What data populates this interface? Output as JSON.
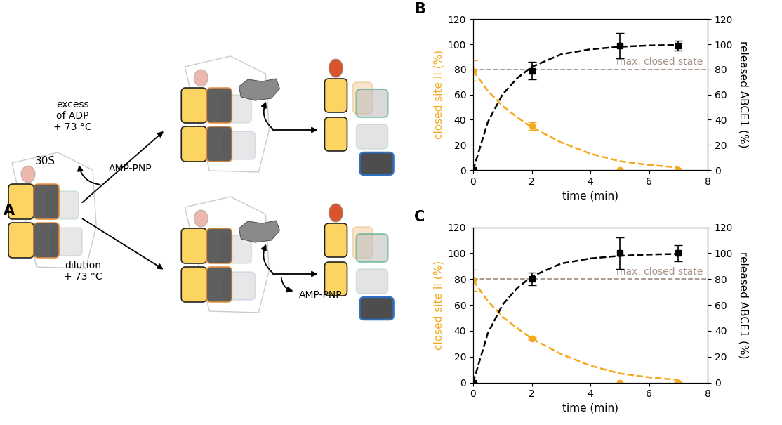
{
  "diagram": {
    "panel_label": "A",
    "start_label": "30S",
    "upper_path": {
      "label": "excess\nof ADP\n+ 73 °C",
      "released": "AMP-PNP"
    },
    "lower_path": {
      "label": "dilution\n+ 73 °C",
      "released": "AMP-PNP"
    }
  },
  "chart_data": [
    {
      "type": "line",
      "panel_label": "B",
      "x_label": "time (min)",
      "y_label": "closed site II (%)",
      "y2_label": "released ABCE1 (%)",
      "xlim": [
        0,
        8
      ],
      "xticks": [
        0,
        2,
        4,
        6,
        8
      ],
      "ylim": [
        0,
        120
      ],
      "yticks": [
        0,
        20,
        40,
        60,
        80,
        100,
        120
      ],
      "y2lim": [
        0,
        120
      ],
      "y2ticks": [
        0,
        20,
        40,
        60,
        80,
        100,
        120
      ],
      "grid": false,
      "annotations": [
        {
          "text": "max. closed state",
          "value": 80,
          "color": "#a39289",
          "line_style": "dashed"
        }
      ],
      "series": [
        {
          "type": "scatter",
          "axis": "y",
          "color": "#f5a81c",
          "marker": "circle",
          "x": [
            0,
            2,
            5,
            7
          ],
          "values": [
            79,
            35,
            0,
            0
          ],
          "errors": [
            8,
            3,
            0,
            0
          ]
        },
        {
          "type": "line",
          "axis": "y",
          "color": "#f5a81c",
          "line_style": "dashed",
          "x": [
            0,
            0.5,
            1,
            1.5,
            2,
            3,
            4,
            5,
            6,
            7
          ],
          "values": [
            79,
            63,
            51,
            42,
            34,
            22,
            13,
            7,
            4,
            2
          ]
        },
        {
          "type": "scatter",
          "axis": "y2",
          "color": "#000000",
          "marker": "square",
          "x": [
            0,
            2,
            5,
            7
          ],
          "values": [
            0,
            79,
            99,
            99
          ],
          "errors": [
            0,
            7,
            10,
            4
          ]
        },
        {
          "type": "line",
          "axis": "y2",
          "color": "#000000",
          "line_style": "dashed",
          "x": [
            0,
            0.5,
            1,
            1.5,
            2,
            3,
            4,
            5,
            6,
            7
          ],
          "values": [
            0,
            38,
            60,
            73,
            82,
            92,
            96,
            98,
            99,
            99.5
          ]
        }
      ]
    },
    {
      "type": "line",
      "panel_label": "C",
      "x_label": "time (min)",
      "y_label": "closed site II (%)",
      "y2_label": "released ABCE1 (%)",
      "xlim": [
        0,
        8
      ],
      "xticks": [
        0,
        2,
        4,
        6,
        8
      ],
      "ylim": [
        0,
        120
      ],
      "yticks": [
        0,
        20,
        40,
        60,
        80,
        100,
        120
      ],
      "y2lim": [
        0,
        120
      ],
      "y2ticks": [
        0,
        20,
        40,
        60,
        80,
        100,
        120
      ],
      "grid": false,
      "annotations": [
        {
          "text": "max. closed state",
          "value": 80,
          "color": "#a39289",
          "line_style": "dashed"
        }
      ],
      "series": [
        {
          "type": "scatter",
          "axis": "y",
          "color": "#f5a81c",
          "marker": "circle",
          "x": [
            0,
            2,
            5,
            7
          ],
          "values": [
            79,
            34,
            0,
            0
          ],
          "errors": [
            8,
            1,
            0,
            0
          ]
        },
        {
          "type": "line",
          "axis": "y",
          "color": "#f5a81c",
          "line_style": "dashed",
          "x": [
            0,
            0.5,
            1,
            1.5,
            2,
            3,
            4,
            5,
            6,
            7
          ],
          "values": [
            79,
            63,
            51,
            42,
            34,
            22,
            13,
            7,
            4,
            2
          ]
        },
        {
          "type": "scatter",
          "axis": "y2",
          "color": "#000000",
          "marker": "square",
          "x": [
            0,
            2,
            5,
            7
          ],
          "values": [
            0,
            80,
            100,
            100
          ],
          "errors": [
            0,
            5,
            12,
            6
          ]
        },
        {
          "type": "line",
          "axis": "y2",
          "color": "#000000",
          "line_style": "dashed",
          "x": [
            0,
            0.5,
            1,
            1.5,
            2,
            3,
            4,
            5,
            6,
            7
          ],
          "values": [
            0,
            38,
            60,
            73,
            82,
            92,
            96,
            98,
            99,
            99.5
          ]
        }
      ]
    }
  ]
}
